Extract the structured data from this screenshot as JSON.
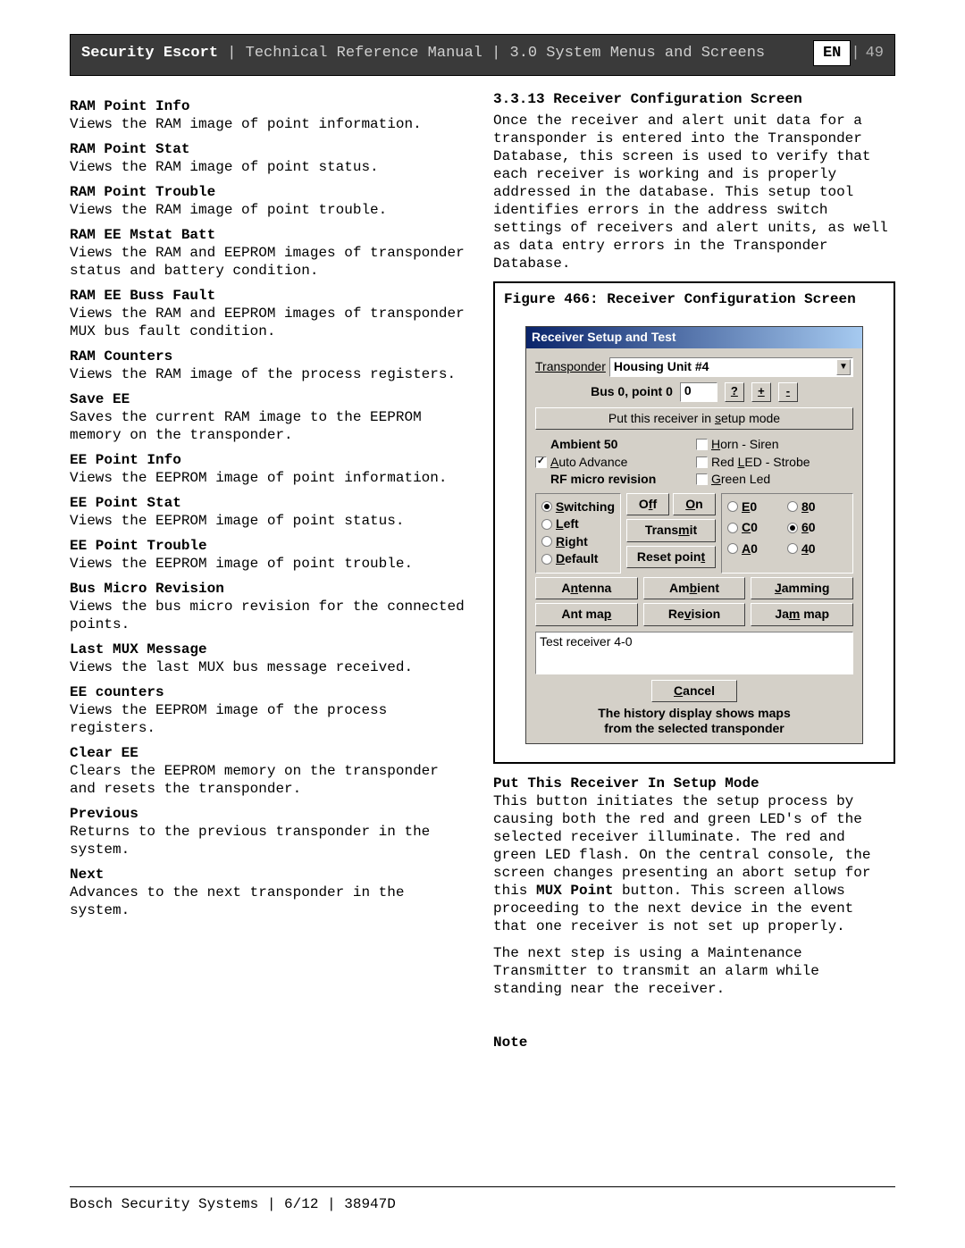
{
  "header": {
    "product_bold": "Security Escort",
    "pipe": " | ",
    "doc": "Technical Reference Manual | 3.0  System Menus and Screens",
    "lang": "EN",
    "page_num": "49"
  },
  "left_col": [
    {
      "term": "RAM Point Info",
      "desc": "Views the RAM image of point information."
    },
    {
      "term": "RAM Point Stat",
      "desc": "Views the RAM image of point status."
    },
    {
      "term": "RAM Point Trouble",
      "desc": "Views the RAM image of point trouble."
    },
    {
      "term": "RAM EE Mstat Batt",
      "desc": "Views the RAM and EEPROM images of transponder status and battery condition."
    },
    {
      "term": "RAM EE Buss Fault",
      "desc": "Views the RAM and EEPROM images of transponder MUX bus fault condition."
    },
    {
      "term": "RAM Counters",
      "desc": "Views the RAM image of the process registers."
    },
    {
      "term": "Save EE",
      "desc": "Saves the current RAM image to the EEPROM memory on the transponder."
    },
    {
      "term": "EE Point Info",
      "desc": "Views the EEPROM image of point information."
    },
    {
      "term": "EE Point Stat",
      "desc": "Views the EEPROM image of point status."
    },
    {
      "term": "EE Point Trouble",
      "desc": "Views the EEPROM image of point trouble."
    },
    {
      "term": "Bus Micro Revision",
      "desc": "Views the bus micro revision for the connected points."
    },
    {
      "term": "Last MUX Message",
      "desc": "Views the last MUX bus message received."
    },
    {
      "term": "EE counters",
      "desc": "Views the EEPROM image of the process registers."
    },
    {
      "term": "Clear EE",
      "desc": "Clears the EEPROM memory on the transponder and resets the transponder."
    },
    {
      "term": "Previous",
      "desc": "Returns to the previous transponder in the system."
    },
    {
      "term": "Next",
      "desc": "Advances to the next transponder in the system."
    }
  ],
  "right_col": {
    "section_num": "3.3.13",
    "section_title": "Receiver Configuration Screen",
    "intro": "Once the receiver and alert unit data for a transponder is entered into the Transponder Database, this screen is used to verify that each receiver is working and is properly addressed in the database. This setup tool identifies errors in the address switch settings of receivers and alert units, as well as data entry errors in the Transponder Database.",
    "figure_caption": "Figure 466: Receiver Configuration Screen",
    "dialog": {
      "title": "Receiver Setup and Test",
      "transponder_label": "Transponder",
      "transponder_value": "Housing Unit #4",
      "bus_label": "Bus 0, point 0",
      "bus_value": "0",
      "qbtn": "?",
      "plusbtn": "+",
      "minusbtn": "-",
      "setup_btn": "Put this receiver in setup mode",
      "ambient_label": "Ambient 50",
      "auto_advance": "Auto Advance",
      "rf_label": "RF micro revision",
      "horn": "Horn - Siren",
      "redled": "Red LED - Strobe",
      "greenled": "Green Led",
      "radios": [
        "Switching",
        "Left",
        "Right",
        "Default"
      ],
      "radio_selected": 0,
      "off_btn": "Off",
      "on_btn": "On",
      "transmit_btn": "Transmit",
      "reset_btn": "Reset point",
      "rgrid": [
        "E0",
        "80",
        "C0",
        "60",
        "A0",
        "40"
      ],
      "rgrid_selected": 3,
      "row_buttons_1": [
        "Antenna",
        "Ambient",
        "Jamming"
      ],
      "row_buttons_2": [
        "Ant map",
        "Revision",
        "Jam map"
      ],
      "test_text": "Test receiver 4-0",
      "cancel": "Cancel",
      "history1": "The history display shows maps",
      "history2": "from the selected transponder"
    },
    "put_head": "Put This Receiver In Setup Mode",
    "put_p1a": "This button initiates the setup process by causing both the red and green LED's of the selected receiver illuminate. The red and green LED flash. On the central console, the screen changes presenting an abort setup for this ",
    "put_bold": "MUX Point",
    "put_p1b": " button. This screen allows proceeding to the next device in the event that one receiver is not set up properly.",
    "put_p2": "The next step is using a Maintenance Transmitter to transmit an alarm while standing near the receiver.",
    "note": "Note"
  },
  "footer": "Bosch Security Systems | 6/12 | 38947D"
}
